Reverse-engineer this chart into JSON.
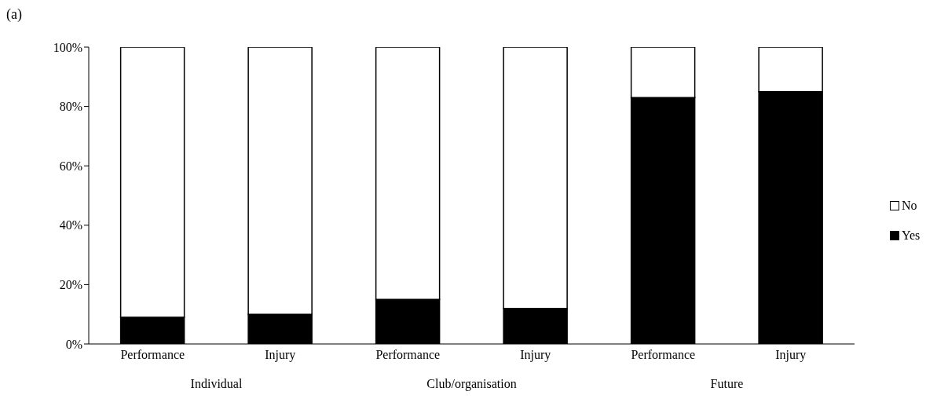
{
  "chart_data": {
    "type": "bar",
    "title": "(a)",
    "stacked": true,
    "categories": [
      "Performance",
      "Injury",
      "Performance",
      "Injury",
      "Performance",
      "Injury"
    ],
    "series": [
      {
        "name": "Yes",
        "color": "#000000",
        "values": [
          9,
          10,
          15,
          12,
          83,
          85
        ]
      },
      {
        "name": "No",
        "color": "#ffffff",
        "values": [
          91,
          90,
          85,
          88,
          17,
          15
        ]
      }
    ],
    "ylim": [
      0,
      100
    ],
    "yticks": [
      {
        "value": 0,
        "label": "0%"
      },
      {
        "value": 20,
        "label": "20%"
      },
      {
        "value": 40,
        "label": "40%"
      },
      {
        "value": 60,
        "label": "60%"
      },
      {
        "value": 80,
        "label": "80%"
      },
      {
        "value": 100,
        "label": "100%"
      }
    ],
    "grid": false,
    "legend": "right",
    "annotations": [
      "Individual",
      "Club/organisation",
      "Future"
    ]
  }
}
